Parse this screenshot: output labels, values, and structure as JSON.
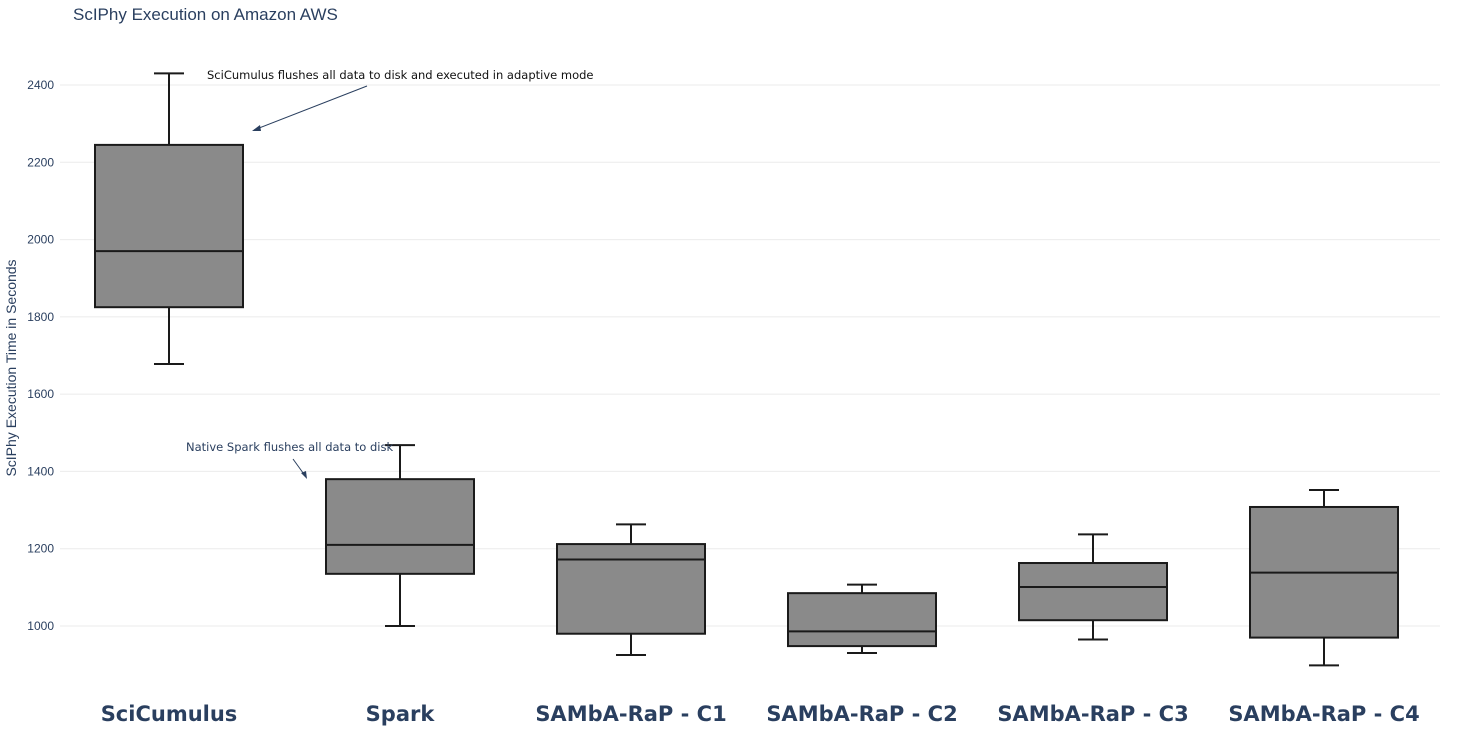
{
  "chart_data": {
    "type": "box",
    "title": "ScIPhy Execution on Amazon AWS",
    "xlabel": "",
    "ylabel": "ScIPhy Execution Time in Seconds",
    "ylim": [
      850,
      2480
    ],
    "yticks": [
      "1000",
      "1200",
      "1400",
      "1600",
      "1800",
      "2000",
      "2200",
      "2400"
    ],
    "grid": true,
    "categories": [
      "SciCumulus",
      "Spark",
      "SAMbA-RaP - C1",
      "SAMbA-RaP - C2",
      "SAMbA-RaP - C3",
      "SAMbA-RaP - C4"
    ],
    "boxes": [
      {
        "min": 1678,
        "q1": 1825,
        "median": 1970,
        "q3": 2245,
        "max": 2430
      },
      {
        "min": 1000,
        "q1": 1135,
        "median": 1210,
        "q3": 1380,
        "max": 1468
      },
      {
        "min": 925,
        "q1": 980,
        "median": 1172,
        "q3": 1212,
        "max": 1263
      },
      {
        "min": 930,
        "q1": 948,
        "median": 986,
        "q3": 1085,
        "max": 1107
      },
      {
        "min": 965,
        "q1": 1015,
        "median": 1101,
        "q3": 1163,
        "max": 1237
      },
      {
        "min": 898,
        "q1": 970,
        "median": 1138,
        "q3": 1308,
        "max": 1352
      }
    ],
    "box_color": "#8a8a8a",
    "annotations": [
      {
        "text": "SciCumulus flushes all data to disk and executed in adaptive mode",
        "color": "#111111"
      },
      {
        "text": "Native Spark flushes all data to disk",
        "color": "#2a3f5f"
      }
    ]
  }
}
